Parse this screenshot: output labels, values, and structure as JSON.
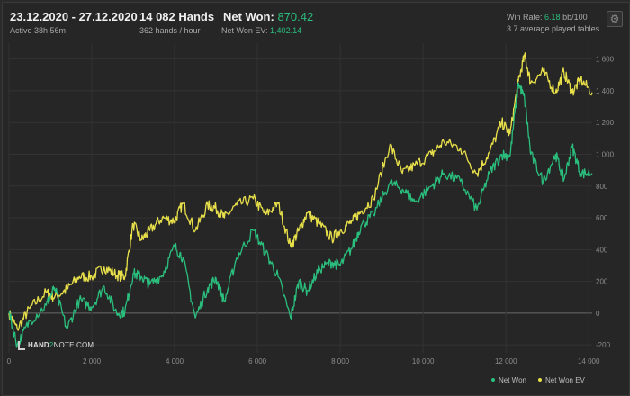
{
  "header": {
    "date_range": "23.12.2020 - 27.12.2020",
    "active": "Active 38h 56m",
    "hands": "14 082 Hands",
    "hands_per_hour": "362 hands / hour",
    "net_won_label": "Net Won:",
    "net_won_value": "870.42",
    "net_won_ev_label": "Net Won  EV:",
    "net_won_ev_value": "1,402.14",
    "win_rate_label": "Win Rate:",
    "win_rate_value": "6.18",
    "win_rate_unit": "bb/100",
    "avg_tables": "3.7 average played tables"
  },
  "logo": {
    "text_a": "HAND",
    "text_b": "2",
    "text_c": "NOTE.COM"
  },
  "icons": {
    "settings": "gear-icon"
  },
  "colors": {
    "net_won": "#2bbf7e",
    "net_won_ev": "#e8e04a",
    "background": "#262626"
  },
  "chart_data": {
    "type": "line",
    "x_ticks": [
      "0",
      "2 000",
      "4 000",
      "6 000",
      "8 000",
      "10 000",
      "12 000",
      "14 000"
    ],
    "y_ticks": [
      "-200",
      "0",
      "200",
      "400",
      "600",
      "800",
      "1 000",
      "1 200",
      "1 400",
      "1 600"
    ],
    "xlim": [
      0,
      14082
    ],
    "ylim": [
      -250,
      1700
    ],
    "grid": true,
    "legend_position": "bottom-right",
    "series": [
      {
        "name": "Net Won",
        "color": "#2bbf7e",
        "points": [
          [
            0,
            0
          ],
          [
            200,
            -200
          ],
          [
            500,
            -50
          ],
          [
            900,
            50
          ],
          [
            1100,
            160
          ],
          [
            1400,
            -100
          ],
          [
            1700,
            80
          ],
          [
            2000,
            40
          ],
          [
            2300,
            170
          ],
          [
            2600,
            0
          ],
          [
            2800,
            10
          ],
          [
            3000,
            250
          ],
          [
            3200,
            230
          ],
          [
            3400,
            180
          ],
          [
            3700,
            240
          ],
          [
            4000,
            420
          ],
          [
            4200,
            350
          ],
          [
            4500,
            -30
          ],
          [
            4800,
            160
          ],
          [
            5000,
            220
          ],
          [
            5200,
            70
          ],
          [
            5500,
            350
          ],
          [
            5900,
            520
          ],
          [
            6200,
            380
          ],
          [
            6500,
            230
          ],
          [
            6800,
            -30
          ],
          [
            7000,
            200
          ],
          [
            7200,
            140
          ],
          [
            7500,
            280
          ],
          [
            7800,
            320
          ],
          [
            8000,
            300
          ],
          [
            8300,
            420
          ],
          [
            8500,
            550
          ],
          [
            8800,
            620
          ],
          [
            9200,
            820
          ],
          [
            9500,
            780
          ],
          [
            9800,
            700
          ],
          [
            10200,
            800
          ],
          [
            10500,
            880
          ],
          [
            10900,
            830
          ],
          [
            11300,
            650
          ],
          [
            11600,
            880
          ],
          [
            11900,
            1000
          ],
          [
            12100,
            990
          ],
          [
            12300,
            1450
          ],
          [
            12450,
            1350
          ],
          [
            12600,
            1000
          ],
          [
            12900,
            830
          ],
          [
            13200,
            1000
          ],
          [
            13400,
            840
          ],
          [
            13600,
            1050
          ],
          [
            13800,
            880
          ],
          [
            14082,
            880
          ]
        ]
      },
      {
        "name": "Net Won  EV",
        "color": "#e8e04a",
        "points": [
          [
            0,
            0
          ],
          [
            200,
            -100
          ],
          [
            500,
            30
          ],
          [
            900,
            130
          ],
          [
            1100,
            100
          ],
          [
            1400,
            150
          ],
          [
            1700,
            230
          ],
          [
            2000,
            230
          ],
          [
            2300,
            290
          ],
          [
            2600,
            240
          ],
          [
            2800,
            230
          ],
          [
            3000,
            560
          ],
          [
            3200,
            460
          ],
          [
            3400,
            520
          ],
          [
            3700,
            600
          ],
          [
            4000,
            580
          ],
          [
            4200,
            690
          ],
          [
            4500,
            520
          ],
          [
            4800,
            680
          ],
          [
            5000,
            660
          ],
          [
            5200,
            600
          ],
          [
            5500,
            680
          ],
          [
            5900,
            720
          ],
          [
            6200,
            620
          ],
          [
            6500,
            690
          ],
          [
            6800,
            420
          ],
          [
            7000,
            520
          ],
          [
            7200,
            630
          ],
          [
            7500,
            560
          ],
          [
            7800,
            470
          ],
          [
            8000,
            520
          ],
          [
            8300,
            580
          ],
          [
            8500,
            640
          ],
          [
            8800,
            720
          ],
          [
            9200,
            1060
          ],
          [
            9500,
            880
          ],
          [
            9800,
            930
          ],
          [
            10200,
            1000
          ],
          [
            10500,
            1080
          ],
          [
            10900,
            1040
          ],
          [
            11300,
            880
          ],
          [
            11600,
            1010
          ],
          [
            11900,
            1200
          ],
          [
            12100,
            1130
          ],
          [
            12300,
            1460
          ],
          [
            12450,
            1620
          ],
          [
            12600,
            1450
          ],
          [
            12900,
            1520
          ],
          [
            13200,
            1390
          ],
          [
            13400,
            1520
          ],
          [
            13600,
            1390
          ],
          [
            13800,
            1470
          ],
          [
            14082,
            1390
          ]
        ]
      }
    ]
  }
}
